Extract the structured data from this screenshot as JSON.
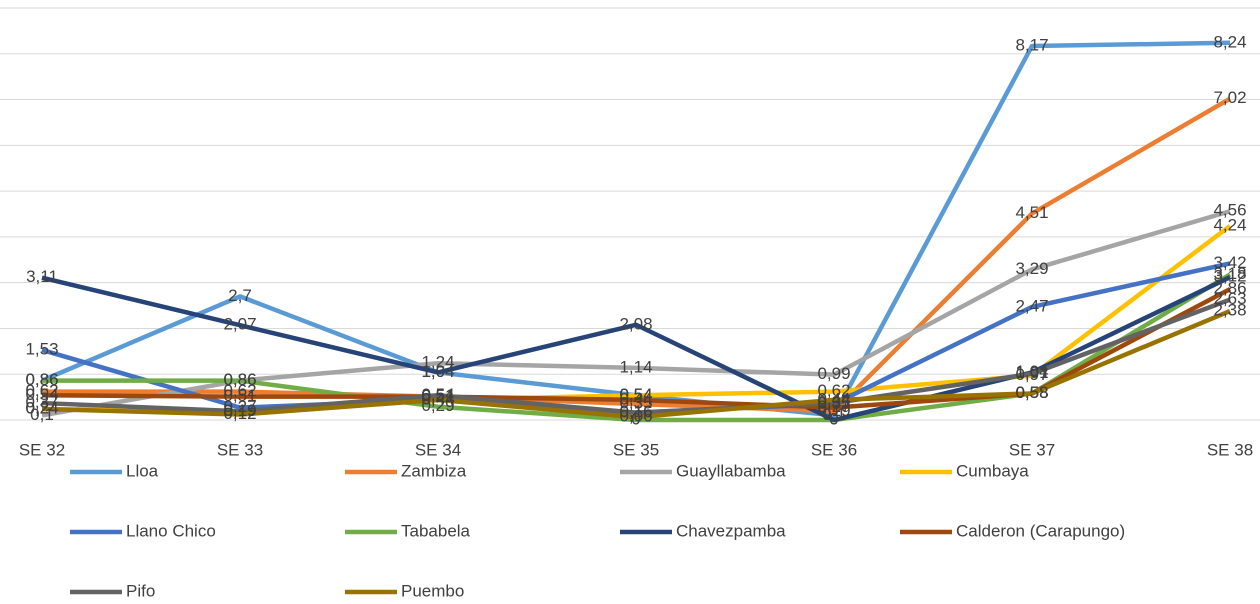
{
  "chart_data": {
    "type": "line",
    "categories": [
      "SE 32",
      "SE 33",
      "SE 34",
      "SE 35",
      "SE 36",
      "SE 37",
      "SE 38"
    ],
    "ylim": [
      0,
      9
    ],
    "yticks": [
      0,
      1,
      2,
      3,
      4,
      5,
      6,
      7,
      8,
      9
    ],
    "grid": true,
    "legend": "bottom",
    "series": [
      {
        "name": "Lloa",
        "color": "#5b9bd5",
        "values": [
          0.86,
          2.7,
          1.04,
          0.54,
          0.1,
          8.17,
          8.24
        ],
        "value_labels": [
          "0,86",
          "2,7",
          "1,04",
          "0,54",
          "0,1",
          "8,17",
          "8,24"
        ]
      },
      {
        "name": "Zambiza",
        "color": "#ed7d31",
        "values": [
          0.62,
          0.62,
          0.51,
          0.35,
          0.19,
          4.51,
          7.02
        ],
        "value_labels": [
          "0,62",
          "0,62",
          "0,51",
          "0,35",
          "0,19",
          "4,51",
          "7,02"
        ]
      },
      {
        "name": "Guayllabamba",
        "color": "#a5a5a5",
        "values": [
          0.1,
          0.86,
          1.24,
          1.14,
          0.99,
          3.29,
          4.56
        ],
        "value_labels": [
          "0,1",
          "0,86",
          "1,24",
          "1,14",
          "0,99",
          "3,29",
          "4,56"
        ]
      },
      {
        "name": "Cumbaya",
        "color": "#ffc000",
        "values": [
          0.24,
          0.19,
          0.44,
          0.54,
          0.62,
          0.97,
          4.24
        ],
        "value_labels": [
          "0,24",
          "0,19",
          "0,44",
          "0,54",
          "0,62",
          "0,97",
          "4,24"
        ]
      },
      {
        "name": "Llano Chico",
        "color": "#4472c4",
        "values": [
          1.53,
          0.27,
          0.44,
          0.16,
          0.35,
          2.47,
          3.42
        ],
        "value_labels": [
          "1,53",
          "0,27",
          "0,44",
          "0,16",
          "0,35",
          "2,47",
          "3,42"
        ]
      },
      {
        "name": "Tababela",
        "color": "#70ad47",
        "values": [
          0.86,
          0.86,
          0.29,
          0,
          0,
          0.58,
          3.18
        ],
        "value_labels": [
          "0,86",
          "0,86",
          "0,29",
          "0",
          "0",
          "0,58",
          "3,18"
        ]
      },
      {
        "name": "Chavezpamba",
        "color": "#264478",
        "values": [
          3.11,
          2.07,
          1.04,
          2.08,
          0,
          1.04,
          3.12
        ],
        "value_labels": [
          "3,11",
          "2,07",
          "1,04",
          "2,08",
          "0",
          "1,04",
          "3,12"
        ]
      },
      {
        "name": "Calderon (Carapungo)",
        "color": "#9e480e",
        "values": [
          0.54,
          0.51,
          0.51,
          0.44,
          0.27,
          0.58,
          2.86
        ],
        "value_labels": [
          "0,54",
          "0,51",
          "0,51",
          "0,44",
          "0,27",
          "0,58",
          "2,86"
        ]
      },
      {
        "name": "Pifo",
        "color": "#636363",
        "values": [
          0.37,
          0.19,
          0.54,
          0.16,
          0.37,
          1.01,
          2.63
        ],
        "value_labels": [
          "0,37",
          "0,19",
          "0,54",
          "0,16",
          "0,37",
          "1,01",
          "2,63"
        ]
      },
      {
        "name": "Puembo",
        "color": "#997300",
        "values": [
          0.24,
          0.12,
          0.44,
          0.06,
          0.44,
          0.58,
          2.38
        ],
        "value_labels": [
          "0,24",
          "0,12",
          "0,44",
          "0,06",
          "0,44",
          "0,58",
          "2,38"
        ]
      }
    ]
  }
}
